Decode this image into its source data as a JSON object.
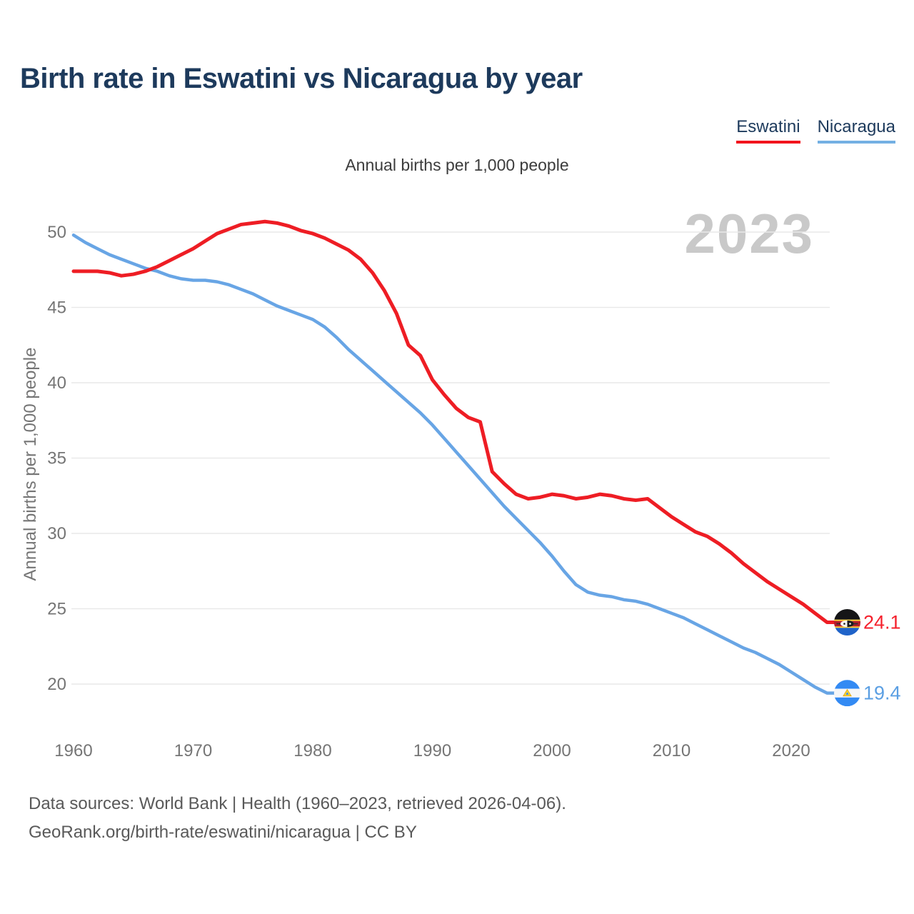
{
  "header": {
    "title": "Birth rate in Eswatini vs Nicaragua by year",
    "subtitle": "Annual births per 1,000 people",
    "watermark_year": "2023"
  },
  "legend": {
    "items": [
      {
        "label": "Eswatini",
        "color": "#f2141d"
      },
      {
        "label": "Nicaragua",
        "color": "#74b0e3"
      }
    ]
  },
  "footer": {
    "line1": "Data sources: World Bank | Health (1960–2023, retrieved 2026-04-06).",
    "line2": "GeoRank.org/birth-rate/eswatini/nicaragua | CC BY"
  },
  "chart_data": {
    "type": "line",
    "title": "Birth rate in Eswatini vs Nicaragua by year",
    "ylabel": "Annual births per 1,000 people",
    "xlabel": "",
    "grid": "horizontal-only",
    "legend_position": "top-right",
    "annotation": "2023",
    "xlim": [
      1960,
      2023
    ],
    "ylim": [
      17.5,
      52
    ],
    "xticks": [
      1960,
      1970,
      1980,
      1990,
      2000,
      2010,
      2020
    ],
    "yticks": [
      20,
      25,
      30,
      35,
      40,
      45,
      50
    ],
    "x": [
      1960,
      1961,
      1962,
      1963,
      1964,
      1965,
      1966,
      1967,
      1968,
      1969,
      1970,
      1971,
      1972,
      1973,
      1974,
      1975,
      1976,
      1977,
      1978,
      1979,
      1980,
      1981,
      1982,
      1983,
      1984,
      1985,
      1986,
      1987,
      1988,
      1989,
      1990,
      1991,
      1992,
      1993,
      1994,
      1995,
      1996,
      1997,
      1998,
      1999,
      2000,
      2001,
      2002,
      2003,
      2004,
      2005,
      2006,
      2007,
      2008,
      2009,
      2010,
      2011,
      2012,
      2013,
      2014,
      2015,
      2016,
      2017,
      2018,
      2019,
      2020,
      2021,
      2022,
      2023
    ],
    "series": [
      {
        "name": "Nicaragua",
        "color": "#68a5e5",
        "stroke_width": 4.5,
        "end_label": "19.4",
        "end_label_color": "#5b9fe3",
        "flag": "nicaragua",
        "values": [
          49.8,
          49.3,
          48.9,
          48.5,
          48.2,
          47.9,
          47.6,
          47.4,
          47.1,
          46.9,
          46.8,
          46.8,
          46.7,
          46.5,
          46.2,
          45.9,
          45.5,
          45.1,
          44.8,
          44.5,
          44.2,
          43.7,
          43.0,
          42.2,
          41.5,
          40.8,
          40.1,
          39.4,
          38.7,
          38.0,
          37.2,
          36.3,
          35.4,
          34.5,
          33.6,
          32.7,
          31.8,
          31.0,
          30.2,
          29.4,
          28.5,
          27.5,
          26.6,
          26.1,
          25.9,
          25.8,
          25.6,
          25.5,
          25.3,
          25.0,
          24.7,
          24.4,
          24.0,
          23.6,
          23.2,
          22.8,
          22.4,
          22.1,
          21.7,
          21.3,
          20.8,
          20.3,
          19.8,
          19.4
        ]
      },
      {
        "name": "Eswatini",
        "color": "#ee1d24",
        "stroke_width": 5,
        "end_label": "24.1",
        "end_label_color": "#f5212d",
        "flag": "eswatini",
        "values": [
          47.4,
          47.4,
          47.4,
          47.3,
          47.1,
          47.2,
          47.4,
          47.7,
          48.1,
          48.5,
          48.9,
          49.4,
          49.9,
          50.2,
          50.5,
          50.6,
          50.7,
          50.6,
          50.4,
          50.1,
          49.9,
          49.6,
          49.2,
          48.8,
          48.2,
          47.3,
          46.1,
          44.6,
          42.5,
          41.8,
          40.2,
          39.2,
          38.3,
          37.7,
          37.4,
          34.1,
          33.3,
          32.6,
          32.3,
          32.4,
          32.6,
          32.5,
          32.3,
          32.4,
          32.6,
          32.5,
          32.3,
          32.2,
          32.3,
          31.7,
          31.1,
          30.6,
          30.1,
          29.8,
          29.3,
          28.7,
          28.0,
          27.4,
          26.8,
          26.3,
          25.8,
          25.3,
          24.7,
          24.1
        ]
      }
    ]
  }
}
